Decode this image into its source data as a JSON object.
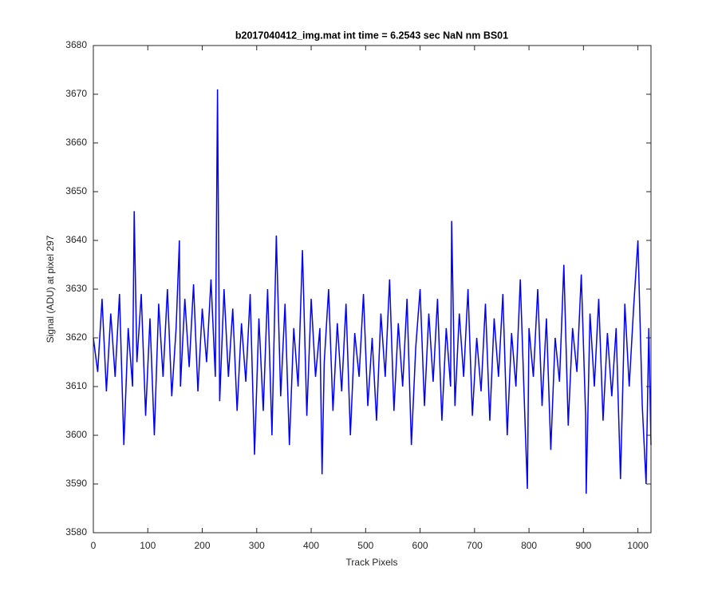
{
  "chart_data": {
    "type": "line",
    "title": "b2017040412_img.mat int time = 6.2543 sec  NaN nm BS01",
    "xlabel": "Track Pixels",
    "ylabel": "Signal (ADU) at pixel 297",
    "xlim": [
      0,
      1024
    ],
    "ylim": [
      3580,
      3680
    ],
    "xticks": [
      0,
      100,
      200,
      300,
      400,
      500,
      600,
      700,
      800,
      900,
      1000
    ],
    "yticks": [
      3580,
      3590,
      3600,
      3610,
      3620,
      3630,
      3640,
      3650,
      3660,
      3670,
      3680
    ],
    "grid": false,
    "x": [
      0,
      8,
      16,
      24,
      32,
      40,
      48,
      56,
      64,
      72,
      75,
      80,
      88,
      96,
      104,
      112,
      120,
      128,
      136,
      144,
      152,
      158,
      160,
      168,
      176,
      184,
      192,
      200,
      208,
      216,
      224,
      228,
      232,
      240,
      248,
      256,
      264,
      272,
      280,
      288,
      296,
      304,
      312,
      320,
      328,
      336,
      344,
      352,
      360,
      368,
      376,
      384,
      392,
      400,
      408,
      416,
      420,
      424,
      432,
      440,
      448,
      456,
      464,
      472,
      480,
      488,
      496,
      504,
      512,
      520,
      528,
      536,
      544,
      552,
      560,
      568,
      576,
      584,
      592,
      600,
      608,
      616,
      624,
      632,
      640,
      648,
      656,
      658,
      664,
      672,
      680,
      688,
      696,
      704,
      712,
      720,
      728,
      736,
      744,
      752,
      760,
      768,
      776,
      784,
      792,
      797,
      800,
      808,
      816,
      824,
      832,
      840,
      848,
      856,
      864,
      872,
      880,
      888,
      896,
      904,
      905,
      912,
      920,
      928,
      936,
      944,
      952,
      960,
      968,
      976,
      984,
      992,
      1000,
      1008,
      1015,
      1020,
      1024
    ],
    "series": [
      {
        "name": "signal",
        "color": "#0000ff",
        "values": [
          3620,
          3613,
          3628,
          3609,
          3625,
          3612,
          3629,
          3598,
          3622,
          3610,
          3646,
          3615,
          3629,
          3604,
          3624,
          3600,
          3627,
          3612,
          3630,
          3608,
          3622,
          3640,
          3610,
          3628,
          3614,
          3631,
          3609,
          3626,
          3615,
          3632,
          3612,
          3671,
          3607,
          3630,
          3612,
          3626,
          3605,
          3623,
          3611,
          3629,
          3596,
          3624,
          3605,
          3630,
          3600,
          3641,
          3608,
          3627,
          3598,
          3622,
          3610,
          3638,
          3604,
          3628,
          3612,
          3622,
          3592,
          3615,
          3630,
          3605,
          3623,
          3609,
          3627,
          3600,
          3621,
          3612,
          3629,
          3606,
          3620,
          3603,
          3625,
          3612,
          3632,
          3605,
          3623,
          3610,
          3628,
          3598,
          3618,
          3630,
          3606,
          3625,
          3611,
          3628,
          3603,
          3622,
          3610,
          3644,
          3606,
          3625,
          3612,
          3630,
          3604,
          3620,
          3609,
          3627,
          3603,
          3624,
          3612,
          3629,
          3600,
          3621,
          3610,
          3632,
          3605,
          3589,
          3622,
          3612,
          3630,
          3606,
          3624,
          3597,
          3620,
          3611,
          3635,
          3602,
          3622,
          3613,
          3633,
          3604,
          3588,
          3625,
          3610,
          3628,
          3603,
          3621,
          3608,
          3622,
          3591,
          3627,
          3610,
          3626,
          3640,
          3606,
          3590,
          3622,
          3598
        ]
      }
    ]
  }
}
